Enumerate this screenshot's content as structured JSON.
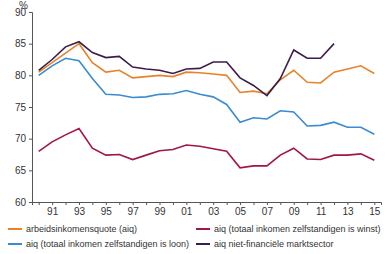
{
  "chart_data": {
    "type": "line",
    "y_label": "%",
    "categories": [
      null,
      "91",
      null,
      "93",
      null,
      "95",
      null,
      "97",
      null,
      "99",
      null,
      "01",
      null,
      "03",
      null,
      "05",
      null,
      "07",
      null,
      "09",
      null,
      "11",
      null,
      "13",
      null,
      "15"
    ],
    "ylim": [
      60,
      90
    ],
    "yticks": [
      60,
      65,
      70,
      75,
      80,
      85,
      90
    ],
    "grid": false,
    "legend": "bottom",
    "series": [
      {
        "name": "arbeidsinkomensquote (aiq)",
        "color": "#e8822a",
        "values": [
          80.5,
          82,
          83.5,
          85,
          82,
          80.5,
          80.8,
          79.6,
          79.8,
          80,
          79.8,
          80.5,
          80.4,
          80.2,
          80,
          77.3,
          77.5,
          77.1,
          79.3,
          80.8,
          78.9,
          78.8,
          80.5,
          81,
          81.5,
          80.3
        ]
      },
      {
        "name": "aiq (totaal inkomen zelfstandigen is winst)",
        "color": "#a0154b",
        "values": [
          68,
          69.5,
          70.6,
          71.6,
          68.5,
          67.4,
          67.5,
          66.7,
          67.4,
          68.1,
          68.3,
          69,
          68.8,
          68.4,
          68,
          65.4,
          65.7,
          65.7,
          67.4,
          68.5,
          66.8,
          66.7,
          67.4,
          67.4,
          67.6,
          66.6
        ]
      },
      {
        "name": "aiq (totaal inkomen zelfstandigen is loon)",
        "color": "#3a8bd0",
        "values": [
          80,
          81.5,
          82.7,
          82.3,
          79.5,
          77,
          76.9,
          76.5,
          76.6,
          77,
          77.1,
          77.6,
          77,
          76.6,
          75.4,
          72.6,
          73.3,
          73.1,
          74.4,
          74.2,
          72,
          72.1,
          72.6,
          71.8,
          71.8,
          70.7
        ]
      },
      {
        "name": "aiq niet-financiële marktsector",
        "color": "#3b1c4a",
        "values": [
          80.8,
          82.5,
          84.5,
          85.3,
          83.6,
          82.8,
          83,
          81.3,
          81,
          80.8,
          80.3,
          81,
          81.1,
          82.1,
          82.1,
          79.6,
          78.4,
          76.8,
          79.5,
          84,
          82.7,
          82.7,
          85,
          null,
          null,
          null
        ]
      }
    ]
  }
}
